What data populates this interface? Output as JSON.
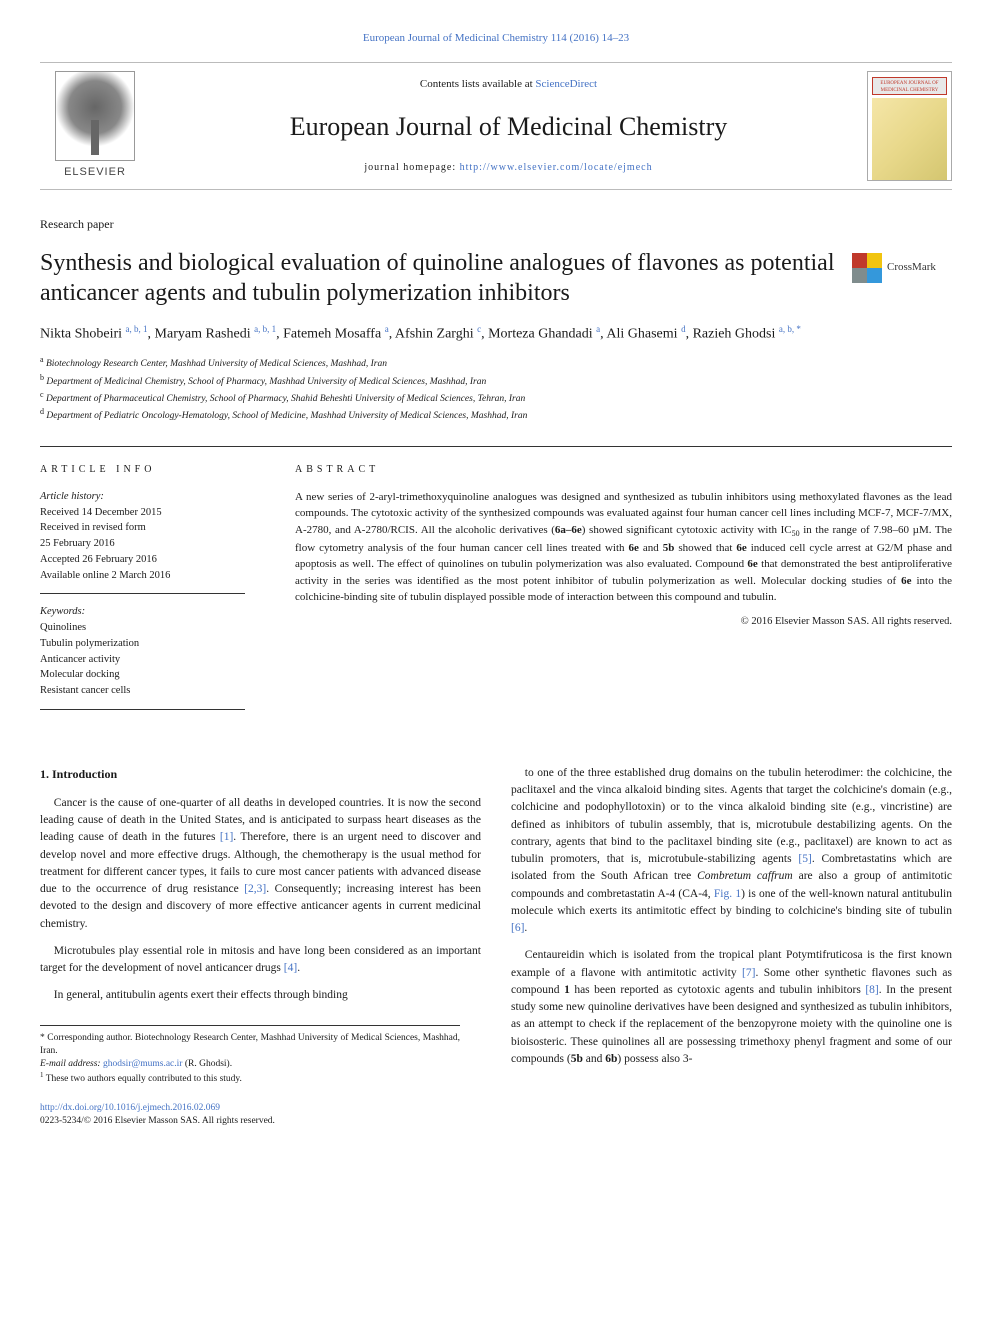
{
  "top_link": "European Journal of Medicinal Chemistry 114 (2016) 14–23",
  "header": {
    "contents_prefix": "Contents lists available at ",
    "contents_link": "ScienceDirect",
    "journal_name": "European Journal of Medicinal Chemistry",
    "homepage_prefix": "journal homepage: ",
    "homepage_url": "http://www.elsevier.com/locate/ejmech",
    "publisher_label": "ELSEVIER",
    "cover_title": "EUROPEAN JOURNAL OF MEDICINAL CHEMISTRY"
  },
  "paper_type": "Research paper",
  "article_title": "Synthesis and biological evaluation of quinoline analogues of flavones as potential anticancer agents and tubulin polymerization inhibitors",
  "crossmark_label": "CrossMark",
  "authors_html": "Nikta Shobeiri <sup class='sup'>a, b, 1</sup>, Maryam Rashedi <sup class='sup'>a, b, 1</sup>, Fatemeh Mosaffa <sup class='sup'>a</sup>, Afshin Zarghi <sup class='sup'>c</sup>, Morteza Ghandadi <sup class='sup'>a</sup>, Ali Ghasemi <sup class='sup'>d</sup>, Razieh Ghodsi <sup class='sup'>a, b, *</sup>",
  "affiliations": [
    {
      "sup": "a",
      "text": "Biotechnology Research Center, Mashhad University of Medical Sciences, Mashhad, Iran"
    },
    {
      "sup": "b",
      "text": "Department of Medicinal Chemistry, School of Pharmacy, Mashhad University of Medical Sciences, Mashhad, Iran"
    },
    {
      "sup": "c",
      "text": "Department of Pharmaceutical Chemistry, School of Pharmacy, Shahid Beheshti University of Medical Sciences, Tehran, Iran"
    },
    {
      "sup": "d",
      "text": "Department of Pediatric Oncology-Hematology, School of Medicine, Mashhad University of Medical Sciences, Mashhad, Iran"
    }
  ],
  "info": {
    "heading": "ARTICLE INFO",
    "history_label": "Article history:",
    "history_lines": [
      "Received 14 December 2015",
      "Received in revised form",
      "25 February 2016",
      "Accepted 26 February 2016",
      "Available online 2 March 2016"
    ],
    "keywords_label": "Keywords:",
    "keywords": [
      "Quinolines",
      "Tubulin polymerization",
      "Anticancer activity",
      "Molecular docking",
      "Resistant cancer cells"
    ]
  },
  "abstract": {
    "heading": "ABSTRACT",
    "text_html": "A new series of 2-aryl-trimethoxyquinoline analogues was designed and synthesized as tubulin inhibitors using methoxylated flavones as the lead compounds. The cytotoxic activity of the synthesized compounds was evaluated against four human cancer cell lines including MCF-7, MCF-7/MX, A-2780, and A-2780/RCIS. All the alcoholic derivatives (<b>6a–6e</b>) showed significant cytotoxic activity with IC<sub class='sub'>50</sub> in the range of 7.98–60 µM. The flow cytometry analysis of the four human cancer cell lines treated with <b>6e</b> and <b>5b</b> showed that <b>6e</b> induced cell cycle arrest at G2/M phase and apoptosis as well. The effect of quinolines on tubulin polymerization was also evaluated. Compound <b>6e</b> that demonstrated the best antiproliferative activity in the series was identified as the most potent inhibitor of tubulin polymerization as well. Molecular docking studies of <b>6e</b> into the colchicine-binding site of tubulin displayed possible mode of interaction between this compound and tubulin.",
    "copyright": "© 2016 Elsevier Masson SAS. All rights reserved."
  },
  "body": {
    "intro_heading": "1. Introduction",
    "left_paras_html": [
      "Cancer is the cause of one-quarter of all deaths in developed countries. It is now the second leading cause of death in the United States, and is anticipated to surpass heart diseases as the leading cause of death in the futures <span class='ref-link'>[1]</span>. Therefore, there is an urgent need to discover and develop novel and more effective drugs. Although, the chemotherapy is the usual method for treatment for different cancer types, it fails to cure most cancer patients with advanced disease due to the occurrence of drug resistance <span class='ref-link'>[2,3]</span>. Consequently; increasing interest has been devoted to the design and discovery of more effective anticancer agents in current medicinal chemistry.",
      "Microtubules play essential role in mitosis and have long been considered as an important target for the development of novel anticancer drugs <span class='ref-link'>[4]</span>.",
      "In general, antitubulin agents exert their effects through binding"
    ],
    "right_paras_html": [
      "to one of the three established drug domains on the tubulin heterodimer: the colchicine, the paclitaxel and the vinca alkaloid binding sites. Agents that target the colchicine's domain (e.g., colchicine and podophyllotoxin) or to the vinca alkaloid binding site (e.g., vincristine) are defined as inhibitors of tubulin assembly, that is, microtubule destabilizing agents. On the contrary, agents that bind to the paclitaxel binding site (e.g., paclitaxel) are known to act as tubulin promoters, that is, microtubule-stabilizing agents <span class='ref-link'>[5]</span>. Combretastatins which are isolated from the South African tree <i>Combretum caffrum</i> are also a group of antimitotic compounds and combretastatin A-4 (CA-4, <span class='ref-link'>Fig. 1</span>) is one of the well-known natural antitubulin molecule which exerts its antimitotic effect by binding to colchicine's binding site of tubulin <span class='ref-link'>[6]</span>.",
      "Centaureidin which is isolated from the tropical plant Potymtifruticosa is the first known example of a flavone with antimitotic activity <span class='ref-link'>[7]</span>. Some other synthetic flavones such as compound <b>1</b> has been reported as cytotoxic agents and tubulin inhibitors <span class='ref-link'>[8]</span>. In the present study some new quinoline derivatives have been designed and synthesized as tubulin inhibitors, as an attempt to check if the replacement of the benzopyrone moiety with the quinoline one is bioisosteric. These quinolines all are possessing trimethoxy phenyl fragment and some of our compounds (<b>5b</b> and <b>6b</b>) possess also 3-"
    ]
  },
  "footnotes": {
    "corresponding": "* Corresponding author. Biotechnology Research Center, Mashhad University of Medical Sciences, Mashhad, Iran.",
    "email_label": "E-mail address: ",
    "email": "ghodsir@mums.ac.ir",
    "email_name": " (R. Ghodsi).",
    "equal": "These two authors equally contributed to this study.",
    "equal_marker": "1"
  },
  "bottom": {
    "doi": "http://dx.doi.org/10.1016/j.ejmech.2016.02.069",
    "issn_line": "0223-5234/© 2016 Elsevier Masson SAS. All rights reserved."
  },
  "colors": {
    "link": "#4472c4",
    "text": "#1a1a1a",
    "border": "#333333"
  }
}
